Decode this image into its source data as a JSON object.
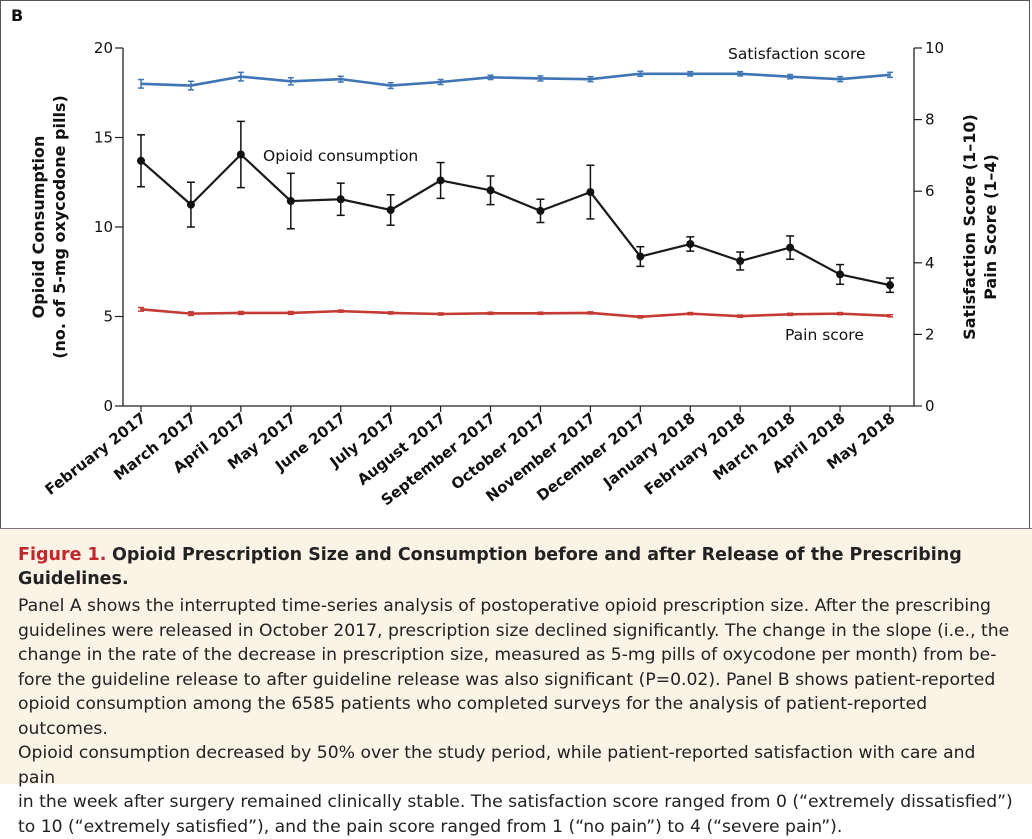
{
  "panel_label": "B",
  "chart_data": {
    "type": "line",
    "categories": [
      "February 2017",
      "March 2017",
      "April 2017",
      "May 2017",
      "June 2017",
      "July 2017",
      "August 2017",
      "September 2017",
      "October 2017",
      "November 2017",
      "December 2017",
      "January 2018",
      "February 2018",
      "March 2018",
      "April 2018",
      "May 2018"
    ],
    "y_left": {
      "label_line1": "Opioid Consumption",
      "label_line2": "(no. of 5-mg oxycodone pills)",
      "range": [
        0,
        20
      ],
      "ticks": [
        "0",
        "5",
        "10",
        "15",
        "20"
      ]
    },
    "y_right": {
      "label_line1": "Satisfaction Score (1–10)",
      "label_line2": "Pain Score (1–4)",
      "range": [
        0,
        10
      ],
      "ticks": [
        "0",
        "2",
        "4",
        "6",
        "8",
        "10"
      ]
    },
    "series": [
      {
        "name": "Satisfaction score",
        "axis": "right",
        "color": "#3f74b5",
        "values": [
          9.0,
          8.95,
          9.2,
          9.07,
          9.13,
          8.95,
          9.05,
          9.18,
          9.15,
          9.13,
          9.28,
          9.28,
          9.28,
          9.2,
          9.13,
          9.25
        ],
        "err": [
          0.12,
          0.12,
          0.12,
          0.1,
          0.08,
          0.08,
          0.07,
          0.06,
          0.07,
          0.07,
          0.07,
          0.06,
          0.06,
          0.06,
          0.07,
          0.07
        ]
      },
      {
        "name": "Opioid consumption",
        "axis": "left",
        "color": "#1a1a1a",
        "values": [
          13.7,
          11.25,
          14.05,
          11.45,
          11.55,
          10.95,
          12.6,
          12.05,
          10.9,
          11.95,
          8.35,
          9.05,
          8.1,
          8.85,
          7.35,
          6.75
        ],
        "err": [
          1.45,
          1.25,
          1.85,
          1.55,
          0.9,
          0.85,
          1.0,
          0.8,
          0.65,
          1.5,
          0.55,
          0.4,
          0.5,
          0.65,
          0.55,
          0.4
        ]
      },
      {
        "name": "Pain score",
        "axis": "right",
        "color": "#c53a33",
        "values": [
          2.7,
          2.58,
          2.6,
          2.6,
          2.65,
          2.6,
          2.57,
          2.59,
          2.59,
          2.6,
          2.49,
          2.58,
          2.51,
          2.56,
          2.58,
          2.52
        ],
        "err": [
          0.05,
          0.05,
          0.04,
          0.04,
          0.03,
          0.03,
          0.03,
          0.03,
          0.03,
          0.03,
          0.03,
          0.03,
          0.03,
          0.03,
          0.03,
          0.03
        ]
      }
    ],
    "annotations": {
      "satisfaction": "Satisfaction score",
      "opioid": "Opioid consumption",
      "pain": "Pain score"
    }
  },
  "caption": {
    "figure_label": "Figure 1.",
    "title": "Opioid Prescription Size and Consumption before and after Release of the Prescribing Guidelines.",
    "lines": [
      "Panel A shows the interrupted time-series analysis of postoperative opioid prescription size. After the prescribing",
      "guidelines were released in October 2017, prescription size declined significantly. The change in the slope (i.e., the",
      "change in the rate of the decrease in prescription size, measured as 5-mg pills of oxycodone per month) from be-",
      "fore the guideline release to after guideline release was also significant (P=0.02). Panel B shows patient-reported",
      "opioid consumption among the 6585 patients who completed surveys for the analysis of patient-reported outcomes.",
      "Opioid consumption decreased by 50% over the study period, while patient-reported satisfaction with care and pain",
      "in the week after surgery remained clinically stable. The satisfaction score ranged from 0 (“extremely dissatisfied”)",
      "to 10 (“extremely satisfied”), and the pain score ranged from 1 (“no pain”) to 4 (“severe pain”)."
    ]
  }
}
